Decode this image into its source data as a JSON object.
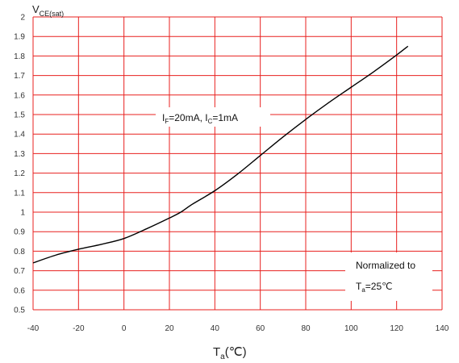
{
  "chart_data": {
    "type": "line",
    "xlabel": {
      "main": "T",
      "sub": "a",
      "unit": "(℃)"
    },
    "ylabel": {
      "main": "V",
      "sub": "CE(sat)"
    },
    "xlim": [
      -40,
      140
    ],
    "ylim": [
      0.5,
      2.0
    ],
    "xticks": [
      "-40",
      "-20",
      "0",
      "20",
      "40",
      "60",
      "80",
      "100",
      "120",
      "140"
    ],
    "yticks": [
      "0.5",
      "0.6",
      "0.7",
      "0.8",
      "0.9",
      "1",
      "1.1",
      "1.2",
      "1.3",
      "1.4",
      "1.5",
      "1.6",
      "1.7",
      "1.8",
      "1.9",
      "2"
    ],
    "grid": true,
    "grid_color": "#e8201f",
    "line_color": "#000000",
    "series": [
      {
        "x": [
          -40,
          -30,
          -20,
          -10,
          0,
          10,
          20,
          25,
          30,
          40,
          50,
          60,
          70,
          80,
          90,
          100,
          110,
          120,
          125
        ],
        "y": [
          0.74,
          0.78,
          0.81,
          0.835,
          0.865,
          0.915,
          0.97,
          1.0,
          1.04,
          1.11,
          1.195,
          1.29,
          1.385,
          1.475,
          1.56,
          1.64,
          1.72,
          1.805,
          1.85
        ]
      }
    ],
    "annotations": [
      {
        "id": "condition",
        "parts": [
          {
            "t": "I",
            "s": "F"
          },
          {
            "t": "=20mA,  I",
            "s": "C"
          },
          {
            "t": "=1mA",
            "s": ""
          }
        ]
      },
      {
        "id": "normalized",
        "line1": "Normalized to",
        "line2_parts": [
          {
            "t": "T",
            "s": "a"
          },
          {
            "t": "=25℃",
            "s": ""
          }
        ]
      }
    ]
  }
}
